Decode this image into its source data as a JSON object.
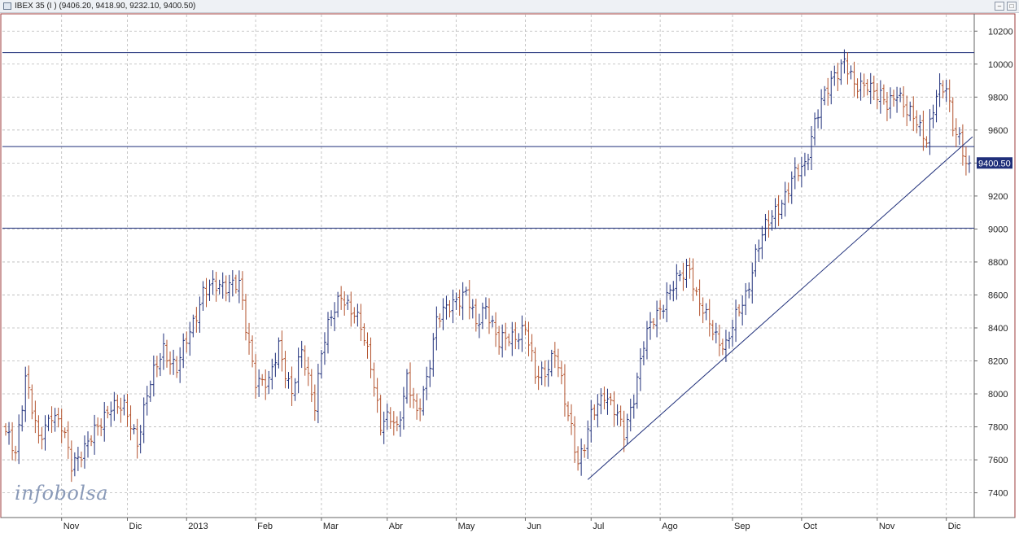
{
  "window": {
    "title": "IBEX 35 (I ) (9406.20, 9418.90, 9232.10, 9400.50)",
    "icons": [
      "chart-icon",
      "minimize-icon",
      "maximize-icon"
    ]
  },
  "watermark": "infobolsa",
  "colors": {
    "up": "#1f2f7a",
    "down": "#b3532e",
    "line": "#1f2f7a",
    "grid": "#b8b8b8",
    "frame": "#9e3b3b",
    "label_bg": "#1f2f7a"
  },
  "chart_data": {
    "type": "ohlc",
    "title": "IBEX 35",
    "last_value_label": "9400.50",
    "last_value": 9400.5,
    "ylim": [
      7250,
      10300
    ],
    "yticks": [
      10200,
      10000,
      9800,
      9600,
      9400,
      9200,
      9000,
      8800,
      8600,
      8400,
      8200,
      8000,
      7800,
      7600,
      7400
    ],
    "grid": true,
    "month_ticks": [
      {
        "label": "Nov",
        "index": 17
      },
      {
        "label": "Dic",
        "index": 37
      },
      {
        "label": "2013",
        "index": 55
      },
      {
        "label": "Feb",
        "index": 76
      },
      {
        "label": "Mar",
        "index": 96
      },
      {
        "label": "Abr",
        "index": 116
      },
      {
        "label": "May",
        "index": 137
      },
      {
        "label": "Jun",
        "index": 158
      },
      {
        "label": "Jul",
        "index": 178
      },
      {
        "label": "Ago",
        "index": 199
      },
      {
        "label": "Sep",
        "index": 221
      },
      {
        "label": "Oct",
        "index": 242
      },
      {
        "label": "Nov",
        "index": 265
      },
      {
        "label": "Dic",
        "index": 286
      }
    ],
    "horizontal_levels": [
      10070,
      9500,
      9005
    ],
    "trendline": {
      "from": {
        "index": 177,
        "value": 7480
      },
      "to": {
        "index": 294,
        "value": 9560
      }
    },
    "anchors": [
      [
        0,
        7750
      ],
      [
        3,
        7640
      ],
      [
        6,
        8120
      ],
      [
        10,
        7700
      ],
      [
        14,
        7900
      ],
      [
        17,
        7800
      ],
      [
        20,
        7560
      ],
      [
        23,
        7660
      ],
      [
        28,
        7780
      ],
      [
        32,
        7950
      ],
      [
        36,
        7900
      ],
      [
        40,
        7720
      ],
      [
        43,
        8000
      ],
      [
        48,
        8280
      ],
      [
        52,
        8150
      ],
      [
        56,
        8380
      ],
      [
        60,
        8620
      ],
      [
        64,
        8650
      ],
      [
        68,
        8680
      ],
      [
        71,
        8650
      ],
      [
        73,
        8400
      ],
      [
        76,
        8100
      ],
      [
        80,
        8050
      ],
      [
        83,
        8300
      ],
      [
        87,
        8000
      ],
      [
        90,
        8250
      ],
      [
        94,
        7950
      ],
      [
        96,
        8250
      ],
      [
        99,
        8460
      ],
      [
        102,
        8620
      ],
      [
        105,
        8500
      ],
      [
        108,
        8400
      ],
      [
        111,
        8200
      ],
      [
        114,
        7800
      ],
      [
        117,
        7850
      ],
      [
        119,
        7800
      ],
      [
        122,
        8100
      ],
      [
        125,
        7850
      ],
      [
        128,
        8100
      ],
      [
        131,
        8450
      ],
      [
        134,
        8500
      ],
      [
        137,
        8580
      ],
      [
        140,
        8620
      ],
      [
        143,
        8400
      ],
      [
        146,
        8550
      ],
      [
        150,
        8300
      ],
      [
        154,
        8350
      ],
      [
        158,
        8400
      ],
      [
        161,
        8100
      ],
      [
        164,
        8150
      ],
      [
        167,
        8250
      ],
      [
        170,
        7950
      ],
      [
        172,
        7800
      ],
      [
        174,
        7600
      ],
      [
        176,
        7680
      ],
      [
        178,
        7850
      ],
      [
        182,
        8020
      ],
      [
        185,
        7900
      ],
      [
        188,
        7750
      ],
      [
        191,
        8000
      ],
      [
        194,
        8300
      ],
      [
        197,
        8450
      ],
      [
        201,
        8600
      ],
      [
        205,
        8700
      ],
      [
        208,
        8780
      ],
      [
        210,
        8600
      ],
      [
        213,
        8450
      ],
      [
        216,
        8350
      ],
      [
        219,
        8300
      ],
      [
        222,
        8450
      ],
      [
        225,
        8600
      ],
      [
        228,
        8850
      ],
      [
        231,
        9000
      ],
      [
        234,
        9120
      ],
      [
        237,
        9200
      ],
      [
        240,
        9320
      ],
      [
        243,
        9400
      ],
      [
        246,
        9650
      ],
      [
        249,
        9800
      ],
      [
        252,
        9950
      ],
      [
        255,
        10020
      ],
      [
        258,
        9850
      ],
      [
        262,
        9900
      ],
      [
        265,
        9800
      ],
      [
        268,
        9750
      ],
      [
        271,
        9850
      ],
      [
        274,
        9700
      ],
      [
        277,
        9650
      ],
      [
        280,
        9560
      ],
      [
        283,
        9800
      ],
      [
        286,
        9860
      ],
      [
        288,
        9650
      ],
      [
        290,
        9550
      ],
      [
        292,
        9380
      ],
      [
        293,
        9400.5
      ]
    ]
  }
}
